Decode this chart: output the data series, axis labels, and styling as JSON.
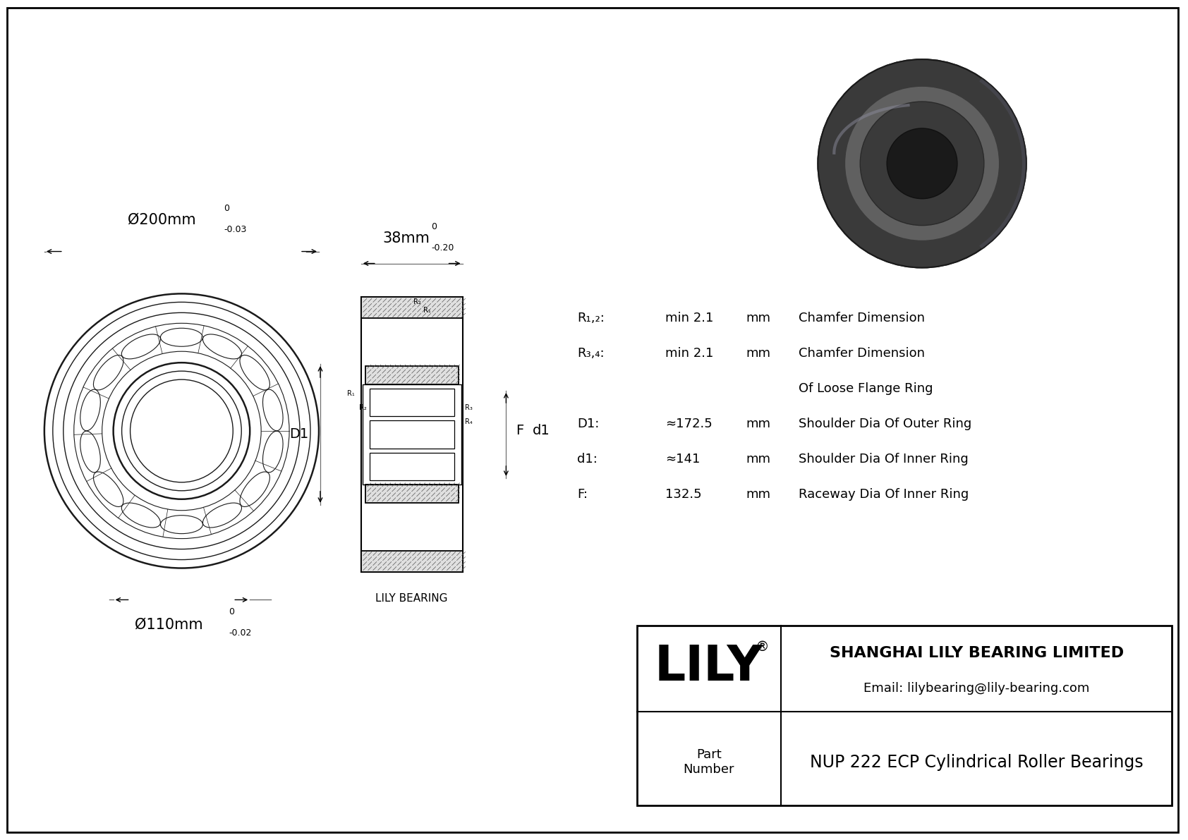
{
  "bg_color": "#ffffff",
  "line_color": "#000000",
  "dim_line_color": "#808080",
  "title": "NUP 222 ECP Cylindrical Roller Bearings",
  "company_name": "SHANGHAI LILY BEARING LIMITED",
  "email": "Email: lilybearing@lily-bearing.com",
  "brand": "LILY",
  "part_label": "Part\nNumber",
  "outer_dia_label": "Ø200mm",
  "outer_dia_tol": "-0.03",
  "outer_dia_tol_upper": "0",
  "inner_dia_label": "Ø110mm",
  "inner_dia_tol": "-0.02",
  "inner_dia_tol_upper": "0",
  "width_label": "38mm",
  "width_tol": "-0.20",
  "width_tol_upper": "0",
  "spec_rows": [
    {
      "label": "R₁,₂:",
      "value": "min 2.1",
      "unit": "mm",
      "desc": "Chamfer Dimension"
    },
    {
      "label": "R₃,₄:",
      "value": "min 2.1",
      "unit": "mm",
      "desc": "Chamfer Dimension"
    },
    {
      "label": "",
      "value": "",
      "unit": "",
      "desc": "Of Loose Flange Ring"
    },
    {
      "label": "D1:",
      "value": "≈172.5",
      "unit": "mm",
      "desc": "Shoulder Dia Of Outer Ring"
    },
    {
      "label": "d1:",
      "value": "≈141",
      "unit": "mm",
      "desc": "Shoulder Dia Of Inner Ring"
    },
    {
      "label": "F:",
      "value": "132.5",
      "unit": "mm",
      "desc": "Raceway Dia Of Inner Ring"
    }
  ],
  "lily_bearing_label": "LILY BEARING"
}
